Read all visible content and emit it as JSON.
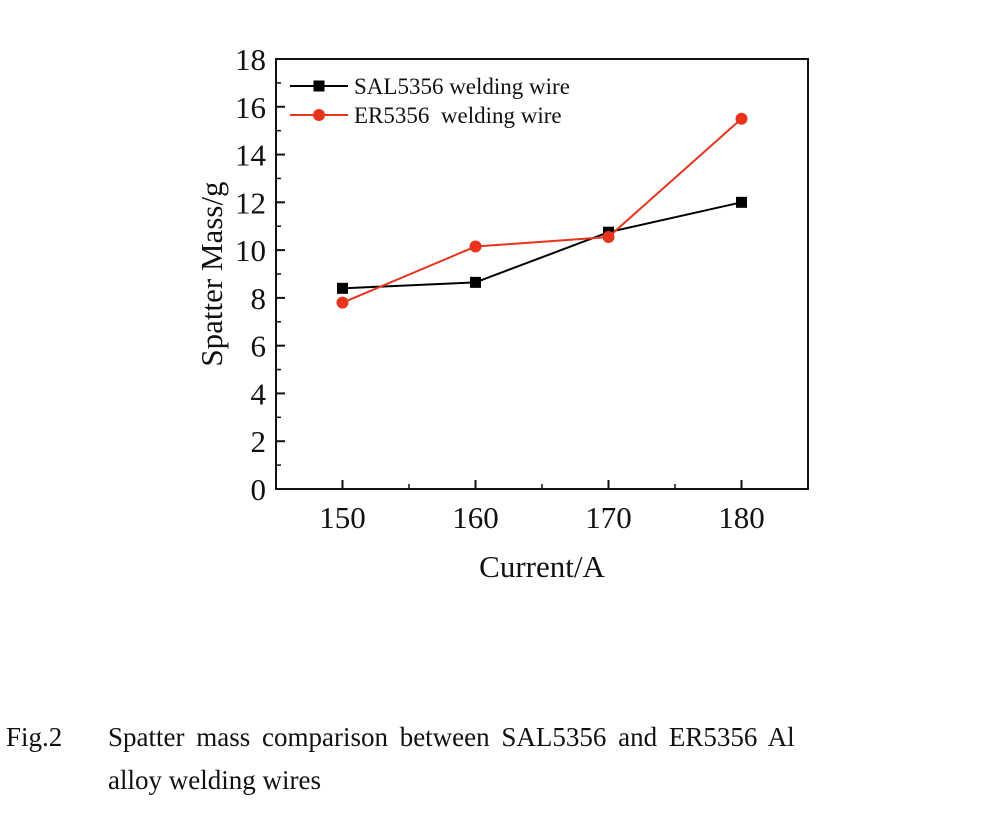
{
  "chart_data": {
    "type": "line",
    "xlabel": "Current/A",
    "ylabel": "Spatter Mass/g",
    "x": [
      150,
      160,
      170,
      180
    ],
    "xlim": [
      145,
      185
    ],
    "xticks": [
      150,
      160,
      170,
      180
    ],
    "ylim": [
      0,
      18
    ],
    "yticks": [
      0,
      2,
      4,
      6,
      8,
      10,
      12,
      14,
      16,
      18
    ],
    "grid": false,
    "legend_position": "top-left",
    "series": [
      {
        "name": "SAL5356 welding wire",
        "values": [
          8.4,
          8.65,
          10.75,
          12.0
        ],
        "color": "#000000",
        "marker": "square"
      },
      {
        "name": "ER5356  welding wire",
        "values": [
          7.8,
          10.15,
          10.55,
          15.5
        ],
        "color": "#e8341c",
        "marker": "circle"
      }
    ]
  },
  "caption": {
    "label": "Fig.2",
    "line1": "Spatter mass comparison between SAL5356 and ER5356 Al",
    "line2": "alloy welding wires"
  }
}
